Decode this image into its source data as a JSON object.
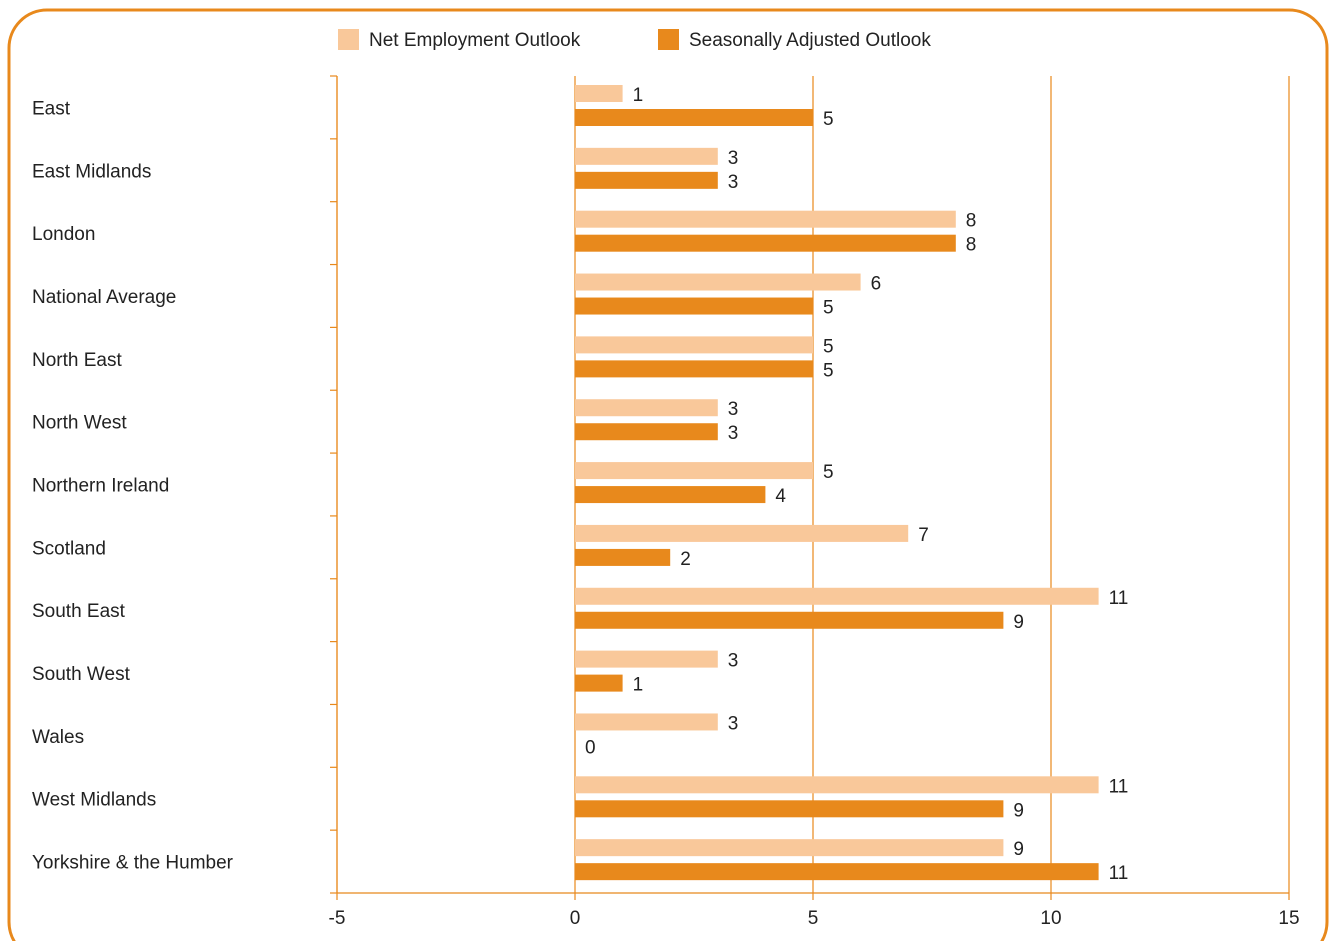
{
  "chart_data": {
    "type": "bar",
    "orientation": "horizontal",
    "categories": [
      "East",
      "East Midlands",
      "London",
      "National Average",
      "North East",
      "North West",
      "Northern Ireland",
      "Scotland",
      "South East",
      "South West",
      "Wales",
      "West Midlands",
      "Yorkshire & the Humber"
    ],
    "series": [
      {
        "name": "Net Employment Outlook",
        "values": [
          1,
          3,
          8,
          6,
          5,
          3,
          5,
          7,
          11,
          3,
          3,
          11,
          9
        ]
      },
      {
        "name": "Seasonally Adjusted Outlook",
        "values": [
          5,
          3,
          8,
          5,
          5,
          3,
          4,
          2,
          9,
          1,
          0,
          9,
          11
        ]
      }
    ],
    "xlim": [
      -5,
      15
    ],
    "xticks": [
      -5,
      0,
      5,
      10,
      15
    ],
    "grid": true,
    "legend": "top-center",
    "colors": {
      "net": "#f9c89a",
      "adjusted": "#e8891c",
      "frame": "#e8891c",
      "grid": "#e8891c"
    }
  }
}
